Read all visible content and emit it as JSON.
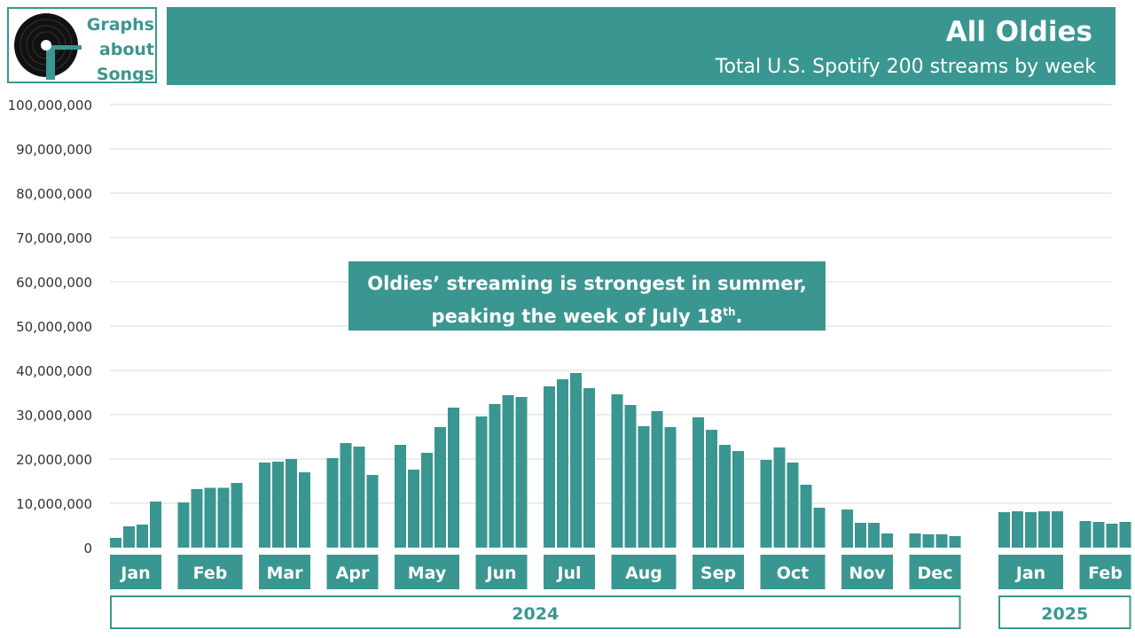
{
  "brand": {
    "lines": [
      "Graphs",
      "about",
      "Songs"
    ],
    "accent_color": "#3a9690"
  },
  "header": {
    "title": "All Oldies",
    "subtitle": "Total U.S. Spotify 200 streams by week"
  },
  "annotation": {
    "line1": "Oldies’ streaming is strongest in summer,",
    "line2_prefix": "peaking the week of July 18",
    "line2_sup": "th",
    "line2_suffix": "."
  },
  "chart_data": {
    "type": "bar",
    "title": "All Oldies",
    "subtitle": "Total U.S. Spotify 200 streams by week",
    "ylim": [
      0,
      100000000
    ],
    "yticks": [
      "0",
      "10,000,000",
      "20,000,000",
      "30,000,000",
      "40,000,000",
      "50,000,000",
      "60,000,000",
      "70,000,000",
      "80,000,000",
      "90,000,000",
      "100,000,000"
    ],
    "grid": true,
    "color": "#3a9690",
    "groups": [
      {
        "month": "Jan",
        "year": "2024",
        "values": [
          2200000,
          4800000,
          5200000,
          10400000
        ]
      },
      {
        "month": "Feb",
        "year": "2024",
        "values": [
          10200000,
          13200000,
          13500000,
          13500000,
          14600000
        ]
      },
      {
        "month": "Mar",
        "year": "2024",
        "values": [
          19200000,
          19400000,
          20000000,
          17000000
        ]
      },
      {
        "month": "Apr",
        "year": "2024",
        "values": [
          20200000,
          23600000,
          22800000,
          16400000
        ]
      },
      {
        "month": "May",
        "year": "2024",
        "values": [
          23200000,
          17600000,
          21400000,
          27200000,
          31600000
        ]
      },
      {
        "month": "Jun",
        "year": "2024",
        "values": [
          29600000,
          32400000,
          34400000,
          34000000
        ]
      },
      {
        "month": "Jul",
        "year": "2024",
        "values": [
          36400000,
          38000000,
          39400000,
          36000000
        ]
      },
      {
        "month": "Aug",
        "year": "2024",
        "values": [
          34600000,
          32200000,
          27400000,
          30800000,
          27200000
        ]
      },
      {
        "month": "Sep",
        "year": "2024",
        "values": [
          29400000,
          26600000,
          23200000,
          21800000
        ]
      },
      {
        "month": "Oct",
        "year": "2024",
        "values": [
          19800000,
          22600000,
          19200000,
          14200000,
          9000000
        ]
      },
      {
        "month": "Nov",
        "year": "2024",
        "values": [
          8600000,
          5600000,
          5600000,
          3200000
        ]
      },
      {
        "month": "Dec",
        "year": "2024",
        "values": [
          3200000,
          3000000,
          3000000,
          2600000
        ]
      },
      {
        "month": "Jan",
        "year": "2025",
        "values": [
          8000000,
          8200000,
          8000000,
          8200000,
          8200000
        ]
      },
      {
        "month": "Feb",
        "year": "2025",
        "values": [
          6000000,
          5800000,
          5400000,
          5800000
        ]
      }
    ],
    "years": [
      "2024",
      "2025"
    ]
  }
}
